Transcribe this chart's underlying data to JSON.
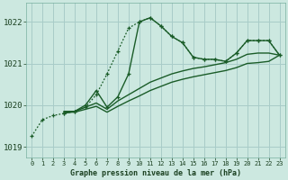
{
  "title": "Graphe pression niveau de la mer (hPa)",
  "bg_color": "#cce8e0",
  "grid_color": "#a8ccc8",
  "line_color": "#1a5c28",
  "xlim": [
    -0.5,
    23.5
  ],
  "ylim": [
    1018.75,
    1022.45
  ],
  "yticks": [
    1019,
    1020,
    1021,
    1022
  ],
  "xticks": [
    0,
    1,
    2,
    3,
    4,
    5,
    6,
    7,
    8,
    9,
    10,
    11,
    12,
    13,
    14,
    15,
    16,
    17,
    18,
    19,
    20,
    21,
    22,
    23
  ],
  "series": [
    {
      "x": [
        0,
        1,
        2,
        3,
        4,
        5,
        6,
        7,
        8,
        9,
        10,
        11,
        12,
        13,
        14,
        15,
        16,
        17,
        18,
        19,
        20,
        21,
        22,
        23
      ],
      "y": [
        1019.25,
        1019.65,
        1019.75,
        1019.8,
        1019.85,
        1019.95,
        1020.25,
        1020.75,
        1021.3,
        1021.85,
        1022.0,
        1022.1,
        1021.9,
        1021.65,
        1021.5,
        1021.15,
        1021.1,
        1021.1,
        1021.05,
        1021.25,
        1021.55,
        1021.55,
        1021.55,
        1021.2
      ],
      "linestyle": "dotted",
      "marker": "+"
    },
    {
      "x": [
        3,
        4,
        5,
        6,
        7,
        8,
        9,
        10,
        11,
        12,
        13,
        14,
        15,
        16,
        17,
        18,
        19,
        20,
        21,
        22,
        23
      ],
      "y": [
        1019.8,
        1019.85,
        1020.0,
        1020.35,
        1019.95,
        1020.2,
        1020.75,
        1022.0,
        1022.1,
        1021.9,
        1021.65,
        1021.5,
        1021.15,
        1021.1,
        1021.1,
        1021.05,
        1021.25,
        1021.55,
        1021.55,
        1021.55,
        1021.2
      ],
      "linestyle": "solid",
      "marker": "+"
    },
    {
      "x": [
        3,
        4,
        5,
        6,
        7,
        8,
        9,
        10,
        11,
        12,
        13,
        14,
        15,
        16,
        17,
        18,
        19,
        20,
        21,
        22,
        23
      ],
      "y": [
        1019.85,
        1019.85,
        1019.95,
        1020.05,
        1019.9,
        1020.1,
        1020.25,
        1020.4,
        1020.55,
        1020.65,
        1020.75,
        1020.82,
        1020.88,
        1020.92,
        1020.97,
        1021.02,
        1021.1,
        1021.22,
        1021.25,
        1021.25,
        1021.2
      ],
      "linestyle": "solid",
      "marker": null
    },
    {
      "x": [
        3,
        4,
        5,
        6,
        7,
        8,
        9,
        10,
        11,
        12,
        13,
        14,
        15,
        16,
        17,
        18,
        19,
        20,
        21,
        22,
        23
      ],
      "y": [
        1019.83,
        1019.83,
        1019.9,
        1019.97,
        1019.83,
        1019.97,
        1020.1,
        1020.22,
        1020.35,
        1020.45,
        1020.55,
        1020.62,
        1020.68,
        1020.73,
        1020.78,
        1020.83,
        1020.9,
        1021.0,
        1021.02,
        1021.05,
        1021.2
      ],
      "linestyle": "solid",
      "marker": null
    }
  ],
  "xlabel_fontsize": 6.0,
  "xtick_fontsize": 5.0,
  "ytick_fontsize": 6.5
}
